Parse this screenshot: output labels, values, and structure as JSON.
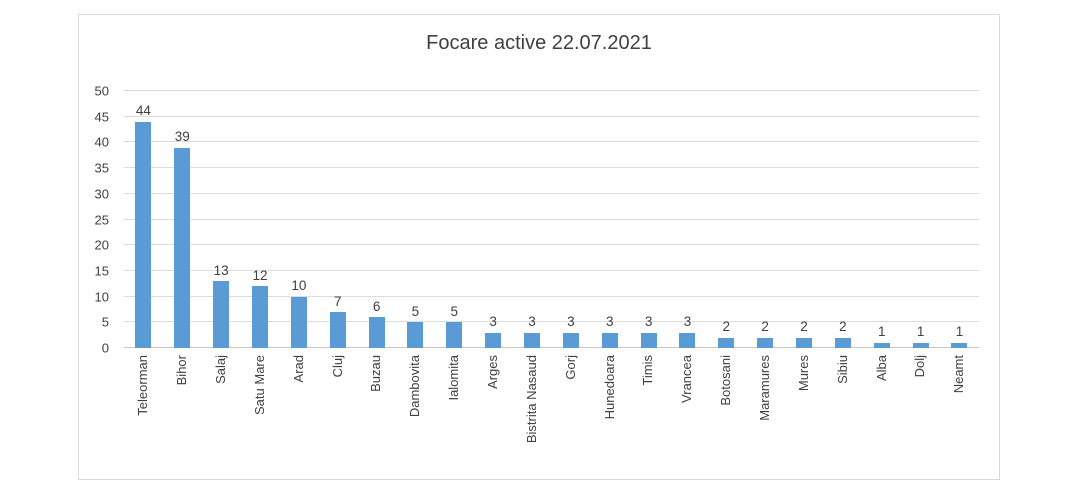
{
  "chart": {
    "colors": {
      "bar": "#5B9BD5",
      "grid": "#DCDCDC",
      "zero_line": "#C6C6C6",
      "text": "#404040",
      "frame_border": "#D9D9D9"
    }
  },
  "chart_data": {
    "type": "bar",
    "title": "Focare active 22.07.2021",
    "categories": [
      "Teleorman",
      "Bihor",
      "Salaj",
      "Satu Mare",
      "Arad",
      "Cluj",
      "Buzau",
      "Dambovita",
      "Ialomita",
      "Arges",
      "Bistrita Nasaud",
      "Gorj",
      "Hunedoara",
      "Timis",
      "Vrancea",
      "Botosani",
      "Maramures",
      "Mures",
      "Sibiu",
      "Alba",
      "Dolj",
      "Neamt"
    ],
    "values": [
      44,
      39,
      13,
      12,
      10,
      7,
      6,
      5,
      5,
      3,
      3,
      3,
      3,
      3,
      3,
      2,
      2,
      2,
      2,
      1,
      1,
      1
    ],
    "xlabel": "",
    "ylabel": "",
    "ylim": [
      0,
      50
    ],
    "y_ticks": [
      0,
      5,
      10,
      15,
      20,
      25,
      30,
      35,
      40,
      45,
      50
    ],
    "grid": true,
    "legend": false,
    "data_labels": true
  }
}
